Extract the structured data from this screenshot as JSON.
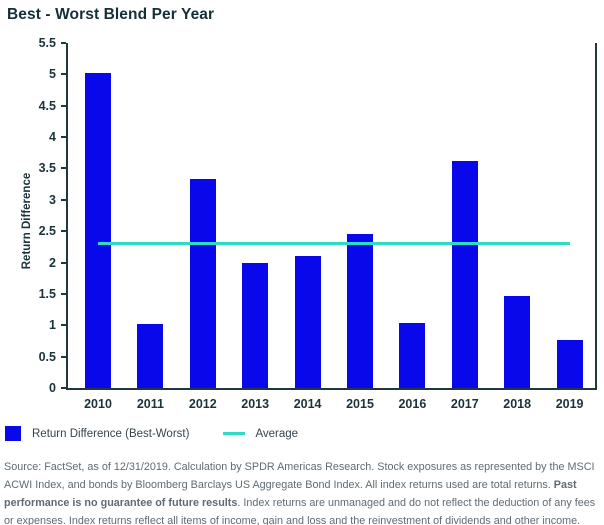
{
  "title": "Best - Worst Blend Per Year",
  "chart_data": {
    "type": "bar",
    "title": "Best - Worst Blend Per Year",
    "categories": [
      "2010",
      "2011",
      "2012",
      "2013",
      "2014",
      "2015",
      "2016",
      "2017",
      "2018",
      "2019"
    ],
    "series": [
      {
        "name": "Return Difference (Best-Worst)",
        "type": "bar",
        "color": "#0808EB",
        "values": [
          5.02,
          1.02,
          3.34,
          1.99,
          2.1,
          2.46,
          1.04,
          3.62,
          1.47,
          0.76
        ]
      },
      {
        "name": "Average",
        "type": "line",
        "color": "#2EDCC3",
        "value": 2.3
      }
    ],
    "xlabel": "",
    "ylabel": "Return Difference",
    "ylim": [
      0,
      5.5
    ],
    "ytick_step": 0.5,
    "grid": false,
    "legend_position": "bottom-left"
  },
  "legend": {
    "bar_label": "Return Difference (Best-Worst)",
    "line_label": "Average"
  },
  "footnote": {
    "part1": "Source: FactSet, as of 12/31/2019. Calculation by SPDR Americas Research. Stock exposures as represented by the MSCI ACWI Index, and bonds by Bloomberg Barclays US Aggregate Bond Index. All index returns used are total returns. ",
    "bold": "Past performance is no guarantee of future results",
    "part2": ". Index returns are unmanaged and do not reflect the deduction of any fees or expenses. Index returns reflect all items of income, gain and loss and the reinvestment of dividends and other income."
  },
  "colors": {
    "bar_blue": "#0808EB",
    "average_teal": "#2EDCC3",
    "axis_dark": "#22363E",
    "title_dark": "#152F39",
    "footnote_gray": "#5F6B74"
  }
}
